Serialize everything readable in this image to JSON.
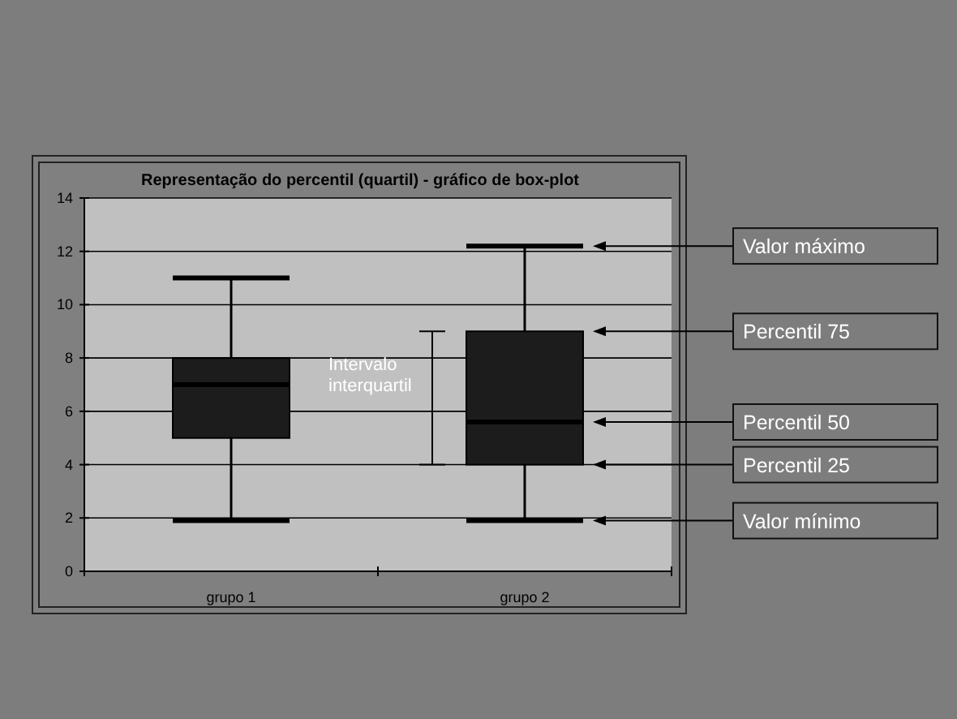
{
  "chart_data": {
    "type": "box",
    "title": "Representação do percentil (quartil)  - gráfico de box-plot",
    "categories": [
      "grupo 1",
      "grupo 2"
    ],
    "boxes": [
      {
        "low": 1.9,
        "q1": 5,
        "median": 7,
        "q3": 8,
        "high": 11
      },
      {
        "low": 1.9,
        "q1": 4,
        "median": 5.6,
        "q3": 9,
        "high": 12.2
      }
    ],
    "color": "#1c1c1c",
    "ylim": [
      0,
      14
    ],
    "yticks": [
      0,
      2,
      4,
      6,
      8,
      10,
      12,
      14
    ],
    "grid": "y",
    "annotations": [
      "Intervalo interquartil",
      "Valor máximo",
      "Percentil 75",
      "Percentil 50",
      "Percentil 25",
      "Valor mínimo"
    ]
  }
}
